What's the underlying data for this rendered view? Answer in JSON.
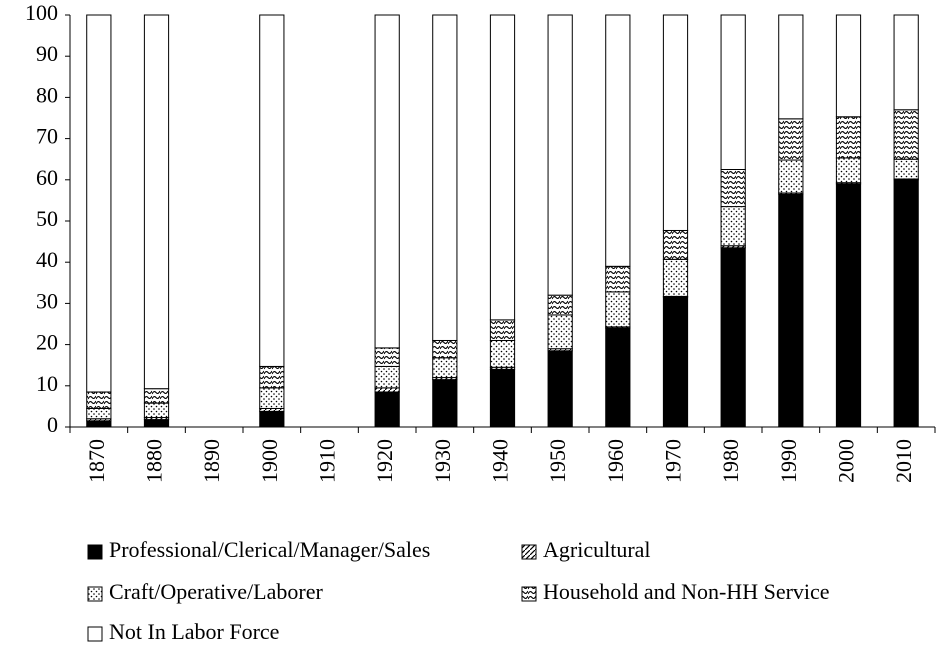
{
  "chart_data": {
    "type": "stacked_bar",
    "categories": [
      "1870",
      "1880",
      "1890",
      "1900",
      "1910",
      "1920",
      "1930",
      "1940",
      "1950",
      "1960",
      "1970",
      "1980",
      "1990",
      "2000",
      "2010"
    ],
    "series": [
      {
        "name": "Professional/Clerical/Manager/Sales",
        "color": "#000000",
        "values": [
          1.5,
          1.8,
          null,
          3.8,
          null,
          8.5,
          11.5,
          14,
          18.5,
          24,
          31.5,
          43.5,
          56.5,
          59,
          60
        ]
      },
      {
        "name": "Agricultural",
        "color": "#000000",
        "values": [
          0.5,
          0.5,
          null,
          0.7,
          null,
          1,
          0.5,
          0.5,
          0.5,
          0.3,
          0.2,
          0.5,
          0.3,
          0.3,
          0.2
        ]
      },
      {
        "name": "Craft/Operative/Laborer",
        "color": "#000000",
        "values": [
          2.5,
          3.5,
          null,
          5,
          null,
          5.2,
          4.8,
          6.5,
          8.2,
          8.5,
          9,
          9.5,
          8,
          6,
          4.8
        ]
      },
      {
        "name": "Household and Non-HH Service",
        "color": "#000000",
        "values": [
          4,
          3.5,
          null,
          5.2,
          null,
          4.5,
          4.2,
          5,
          4.8,
          6.2,
          7,
          9,
          10,
          10,
          12
        ]
      },
      {
        "name": "Not In Labor Force",
        "color": "#000000",
        "values": [
          91.5,
          90.7,
          null,
          85.3,
          null,
          80.8,
          79,
          74,
          68,
          61,
          52.3,
          37.5,
          25.2,
          24.7,
          23
        ]
      }
    ],
    "ylim": [
      0,
      100
    ],
    "yticks": [
      0,
      10,
      20,
      30,
      40,
      50,
      60,
      70,
      80,
      90,
      100
    ]
  }
}
